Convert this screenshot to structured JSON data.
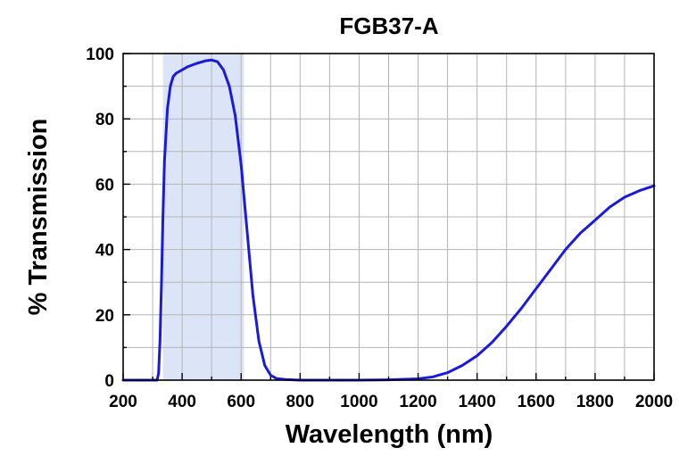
{
  "chart_data": {
    "type": "line",
    "title": "FGB37-A",
    "xlabel": "Wavelength (nm)",
    "ylabel": "% Transmission",
    "xlim": [
      200,
      2000
    ],
    "ylim": [
      0,
      100
    ],
    "xticks": [
      200,
      400,
      600,
      800,
      1000,
      1200,
      1400,
      1600,
      1800,
      2000
    ],
    "yticks": [
      0,
      20,
      40,
      60,
      80,
      100
    ],
    "grid": true,
    "legend": "none",
    "highlight_band": {
      "x": [
        335,
        610
      ],
      "color": "#dce5f7"
    },
    "series": [
      {
        "color": "#1a1adc",
        "x": [
          200,
          300,
          315,
          320,
          325,
          330,
          335,
          340,
          350,
          360,
          370,
          380,
          400,
          420,
          450,
          480,
          500,
          520,
          540,
          560,
          580,
          600,
          620,
          640,
          660,
          680,
          700,
          720,
          750,
          800,
          900,
          1000,
          1100,
          1200,
          1250,
          1300,
          1350,
          1400,
          1450,
          1500,
          1550,
          1600,
          1650,
          1700,
          1750,
          1800,
          1850,
          1900,
          1950,
          2000
        ],
        "y": [
          0,
          0,
          0,
          2,
          12,
          30,
          50,
          67,
          83,
          90,
          93,
          94,
          95,
          96,
          97,
          97.8,
          98,
          97.5,
          95,
          90,
          81,
          66,
          46,
          26,
          12,
          4.5,
          1.5,
          0.5,
          0.2,
          0,
          0,
          0,
          0.1,
          0.4,
          1,
          2.3,
          4.5,
          7.5,
          11.5,
          16.5,
          22,
          28,
          34,
          40,
          45,
          49,
          53,
          56,
          58,
          59.5
        ]
      }
    ]
  }
}
